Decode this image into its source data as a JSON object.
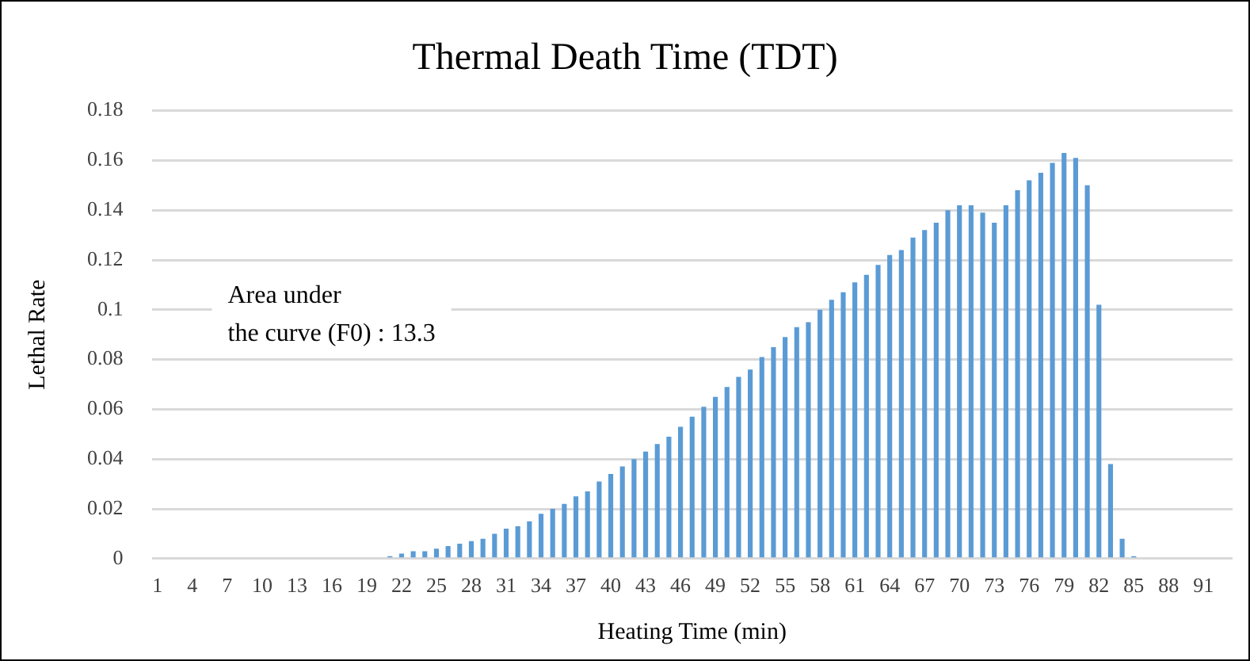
{
  "chart_data": {
    "type": "bar",
    "title": "Thermal Death Time (TDT)",
    "xlabel": "Heating Time (min)",
    "ylabel": "Lethal Rate",
    "annotations": [
      "Area under\nthe curve (F0) : 13.3"
    ],
    "categories": [
      "1",
      null,
      null,
      "4",
      null,
      null,
      "7",
      null,
      null,
      "10",
      null,
      null,
      "13",
      null,
      null,
      "16",
      null,
      null,
      "19",
      null,
      null,
      "22",
      null,
      null,
      "25",
      null,
      null,
      "28",
      null,
      null,
      "31",
      null,
      null,
      "34",
      null,
      null,
      "37",
      null,
      null,
      "40",
      null,
      null,
      "43",
      null,
      null,
      "46",
      null,
      null,
      "49",
      null,
      null,
      "52",
      null,
      null,
      "55",
      null,
      null,
      "58",
      null,
      null,
      "61",
      null,
      null,
      "64",
      null,
      null,
      "67",
      null,
      null,
      "70",
      null,
      null,
      "73",
      null,
      null,
      "76",
      null,
      null,
      "79",
      null,
      null,
      "82",
      null,
      null,
      "85",
      null,
      null,
      "88",
      null,
      null,
      "91",
      null,
      null
    ],
    "values": [
      0,
      0,
      0,
      0,
      0,
      0,
      0,
      0,
      0,
      0,
      0,
      0,
      0,
      0,
      0,
      0,
      0,
      0,
      0,
      0,
      0.001,
      0.002,
      0.003,
      0.003,
      0.004,
      0.005,
      0.006,
      0.007,
      0.008,
      0.01,
      0.012,
      0.013,
      0.015,
      0.018,
      0.02,
      0.022,
      0.025,
      0.027,
      0.031,
      0.034,
      0.037,
      0.04,
      0.043,
      0.046,
      0.049,
      0.053,
      0.057,
      0.061,
      0.065,
      0.069,
      0.073,
      0.076,
      0.081,
      0.085,
      0.089,
      0.093,
      0.095,
      0.1,
      0.104,
      0.107,
      0.111,
      0.114,
      0.118,
      0.122,
      0.124,
      0.129,
      0.132,
      0.135,
      0.14,
      0.142,
      0.142,
      0.139,
      0.135,
      0.142,
      0.148,
      0.152,
      0.155,
      0.159,
      0.163,
      0.161,
      0.15,
      0.102,
      0.038,
      0.008,
      0.001,
      0,
      0,
      0,
      0,
      0,
      0,
      0,
      0
    ],
    "color": "#5b9bd5",
    "ylim": [
      0,
      0.18
    ],
    "yticks": [
      0,
      0.02,
      0.04,
      0.06,
      0.08,
      0.1,
      0.12,
      0.14,
      0.16,
      0.18
    ],
    "grid": "y",
    "legend": false
  }
}
